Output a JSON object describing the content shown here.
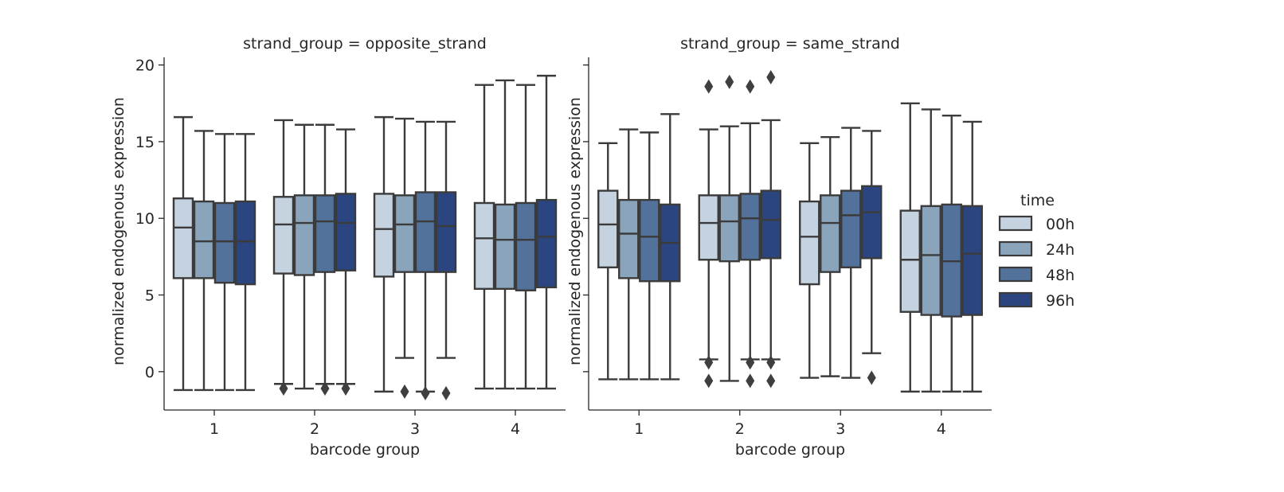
{
  "chart_data": {
    "type": "box",
    "ylabel": "normalized endogenous expression",
    "xlabel": "barcode group",
    "categories": [
      "1",
      "2",
      "3",
      "4"
    ],
    "yticks": [
      0,
      5,
      10,
      15,
      20
    ],
    "ylim": [
      -2.5,
      20.5
    ],
    "legend": {
      "title": "time",
      "placement": "right",
      "entries": [
        "00h",
        "24h",
        "48h",
        "96h"
      ],
      "colors": [
        "#c5d2df",
        "#8aa5bb",
        "#52719b",
        "#2b4580"
      ]
    },
    "line_color": "#3b3b3b",
    "panels": [
      {
        "title": "strand_group = opposite_strand",
        "boxes": [
          [
            {
              "series": "00h",
              "whislo": -1.2,
              "q1": 6.1,
              "med": 9.4,
              "q3": 11.3,
              "whishi": 16.6,
              "fliers": []
            },
            {
              "series": "24h",
              "whislo": -1.2,
              "q1": 6.1,
              "med": 8.5,
              "q3": 11.1,
              "whishi": 15.7,
              "fliers": []
            },
            {
              "series": "48h",
              "whislo": -1.2,
              "q1": 5.8,
              "med": 8.5,
              "q3": 11.0,
              "whishi": 15.5,
              "fliers": []
            },
            {
              "series": "96h",
              "whislo": -1.2,
              "q1": 5.7,
              "med": 8.5,
              "q3": 11.1,
              "whishi": 15.5,
              "fliers": []
            }
          ],
          [
            {
              "series": "00h",
              "whislo": -0.8,
              "q1": 6.4,
              "med": 9.6,
              "q3": 11.4,
              "whishi": 16.4,
              "fliers": [
                -1.1
              ]
            },
            {
              "series": "24h",
              "whislo": -1.1,
              "q1": 6.3,
              "med": 9.7,
              "q3": 11.5,
              "whishi": 16.1,
              "fliers": []
            },
            {
              "series": "48h",
              "whislo": -0.8,
              "q1": 6.5,
              "med": 9.8,
              "q3": 11.5,
              "whishi": 16.1,
              "fliers": [
                -1.1
              ]
            },
            {
              "series": "96h",
              "whislo": -0.8,
              "q1": 6.6,
              "med": 9.7,
              "q3": 11.6,
              "whishi": 15.8,
              "fliers": [
                -1.1
              ]
            }
          ],
          [
            {
              "series": "00h",
              "whislo": -1.3,
              "q1": 6.2,
              "med": 9.3,
              "q3": 11.6,
              "whishi": 16.6,
              "fliers": []
            },
            {
              "series": "24h",
              "whislo": 0.9,
              "q1": 6.5,
              "med": 9.6,
              "q3": 11.5,
              "whishi": 16.5,
              "fliers": [
                -1.3
              ]
            },
            {
              "series": "48h",
              "whislo": -1.3,
              "q1": 6.5,
              "med": 9.8,
              "q3": 11.7,
              "whishi": 16.3,
              "fliers": [
                -1.4
              ]
            },
            {
              "series": "96h",
              "whislo": 0.9,
              "q1": 6.5,
              "med": 9.5,
              "q3": 11.7,
              "whishi": 16.3,
              "fliers": [
                -1.4
              ]
            }
          ],
          [
            {
              "series": "00h",
              "whislo": -1.1,
              "q1": 5.4,
              "med": 8.7,
              "q3": 11.0,
              "whishi": 18.7,
              "fliers": []
            },
            {
              "series": "24h",
              "whislo": -1.1,
              "q1": 5.4,
              "med": 8.6,
              "q3": 10.9,
              "whishi": 19.0,
              "fliers": []
            },
            {
              "series": "48h",
              "whislo": -1.1,
              "q1": 5.3,
              "med": 8.6,
              "q3": 11.0,
              "whishi": 18.7,
              "fliers": []
            },
            {
              "series": "96h",
              "whislo": -1.1,
              "q1": 5.5,
              "med": 8.8,
              "q3": 11.2,
              "whishi": 19.3,
              "fliers": []
            }
          ]
        ]
      },
      {
        "title": "strand_group = same_strand",
        "boxes": [
          [
            {
              "series": "00h",
              "whislo": -0.5,
              "q1": 6.8,
              "med": 9.6,
              "q3": 11.8,
              "whishi": 14.9,
              "fliers": []
            },
            {
              "series": "24h",
              "whislo": -0.5,
              "q1": 6.1,
              "med": 9.0,
              "q3": 11.2,
              "whishi": 15.8,
              "fliers": []
            },
            {
              "series": "48h",
              "whislo": -0.5,
              "q1": 5.9,
              "med": 8.8,
              "q3": 11.2,
              "whishi": 15.6,
              "fliers": []
            },
            {
              "series": "96h",
              "whislo": -0.5,
              "q1": 5.9,
              "med": 8.4,
              "q3": 10.9,
              "whishi": 16.8,
              "fliers": []
            }
          ],
          [
            {
              "series": "00h",
              "whislo": 0.8,
              "q1": 7.3,
              "med": 9.7,
              "q3": 11.5,
              "whishi": 15.8,
              "fliers": [
                18.6,
                0.6,
                -0.6
              ]
            },
            {
              "series": "24h",
              "whislo": -0.6,
              "q1": 7.2,
              "med": 9.8,
              "q3": 11.5,
              "whishi": 16.0,
              "fliers": [
                18.9
              ]
            },
            {
              "series": "48h",
              "whislo": 0.8,
              "q1": 7.3,
              "med": 10.0,
              "q3": 11.6,
              "whishi": 16.2,
              "fliers": [
                18.6,
                0.6,
                -0.6
              ]
            },
            {
              "series": "96h",
              "whislo": 0.8,
              "q1": 7.4,
              "med": 9.9,
              "q3": 11.8,
              "whishi": 16.4,
              "fliers": [
                19.2,
                0.6,
                -0.6
              ]
            }
          ],
          [
            {
              "series": "00h",
              "whislo": -0.4,
              "q1": 5.7,
              "med": 8.8,
              "q3": 11.1,
              "whishi": 14.9,
              "fliers": []
            },
            {
              "series": "24h",
              "whislo": -0.3,
              "q1": 6.5,
              "med": 9.7,
              "q3": 11.5,
              "whishi": 15.3,
              "fliers": []
            },
            {
              "series": "48h",
              "whislo": -0.4,
              "q1": 6.8,
              "med": 10.2,
              "q3": 11.8,
              "whishi": 15.9,
              "fliers": []
            },
            {
              "series": "96h",
              "whislo": 1.2,
              "q1": 7.4,
              "med": 10.4,
              "q3": 12.1,
              "whishi": 15.7,
              "fliers": [
                -0.4
              ]
            }
          ],
          [
            {
              "series": "00h",
              "whislo": -1.3,
              "q1": 3.9,
              "med": 7.3,
              "q3": 10.5,
              "whishi": 17.5,
              "fliers": []
            },
            {
              "series": "24h",
              "whislo": -1.3,
              "q1": 3.7,
              "med": 7.6,
              "q3": 10.8,
              "whishi": 17.1,
              "fliers": []
            },
            {
              "series": "48h",
              "whislo": -1.3,
              "q1": 3.6,
              "med": 7.2,
              "q3": 10.9,
              "whishi": 16.7,
              "fliers": []
            },
            {
              "series": "96h",
              "whislo": -1.3,
              "q1": 3.7,
              "med": 7.7,
              "q3": 10.8,
              "whishi": 16.3,
              "fliers": []
            }
          ]
        ]
      }
    ]
  }
}
